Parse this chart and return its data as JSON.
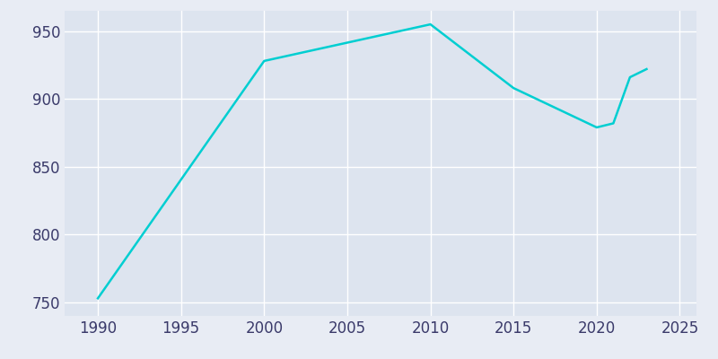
{
  "years": [
    1990,
    2000,
    2010,
    2015,
    2020,
    2021,
    2022,
    2023
  ],
  "population": [
    753,
    928,
    955,
    908,
    879,
    882,
    916,
    922
  ],
  "line_color": "#00CED1",
  "bg_color": "#E8ECF4",
  "plot_bg_color": "#DDE4EF",
  "grid_color": "#FFFFFF",
  "xlim": [
    1988,
    2026
  ],
  "ylim": [
    740,
    965
  ],
  "xticks": [
    1990,
    1995,
    2000,
    2005,
    2010,
    2015,
    2020,
    2025
  ],
  "yticks": [
    750,
    800,
    850,
    900,
    950
  ],
  "tick_label_color": "#3A3A6A",
  "tick_fontsize": 12,
  "line_width": 1.8
}
